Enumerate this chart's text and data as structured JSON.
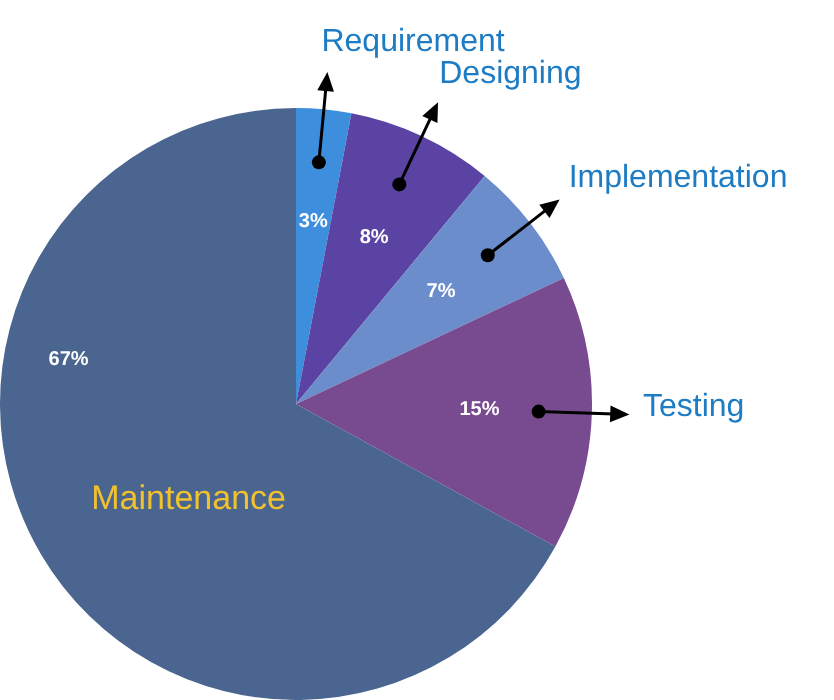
{
  "chart_data": {
    "type": "pie",
    "categories": [
      "Requirement",
      "Designing",
      "Implementation",
      "Testing",
      "Maintenance"
    ],
    "values": [
      3,
      8,
      7,
      15,
      67
    ],
    "value_labels": [
      "3%",
      "8%",
      "7%",
      "15%",
      "67%"
    ],
    "colors": [
      "#3d8fdd",
      "#5a43a3",
      "#6b8dcb",
      "#784b90",
      "#4a6590"
    ],
    "legend": false
  }
}
